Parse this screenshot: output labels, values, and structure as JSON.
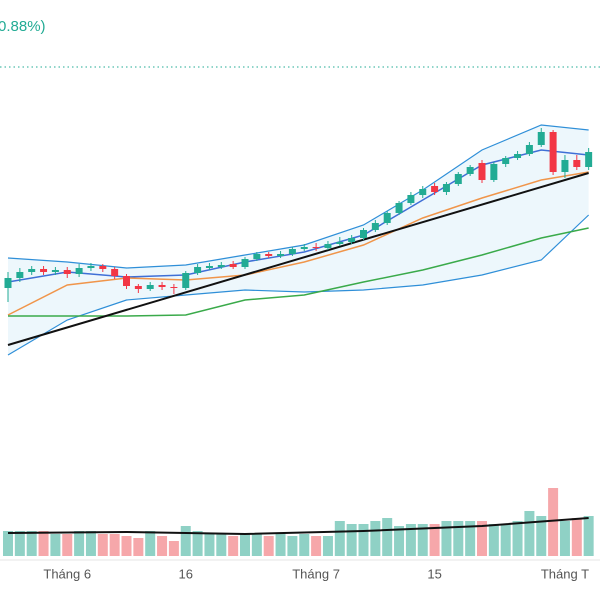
{
  "chart_data": {
    "type": "candlestick",
    "title": "0.88%)",
    "categories": [
      null,
      null,
      null,
      null,
      null,
      "Tháng 6",
      null,
      null,
      null,
      null,
      null,
      null,
      null,
      null,
      null,
      "16",
      null,
      null,
      null,
      null,
      null,
      null,
      null,
      null,
      null,
      null,
      "Tháng 7",
      null,
      null,
      null,
      null,
      null,
      null,
      null,
      null,
      null,
      "15",
      null,
      null,
      null,
      null,
      null,
      null,
      null,
      null,
      null,
      null,
      "Tháng T",
      null,
      null
    ],
    "open": [
      312,
      322,
      328,
      331,
      328,
      330,
      326,
      332,
      334,
      331,
      324,
      314,
      311,
      315,
      313,
      312,
      327,
      332,
      333,
      336,
      333,
      341,
      346,
      344,
      346,
      351,
      353,
      352,
      356,
      358,
      362,
      370,
      377,
      387,
      397,
      405,
      414,
      408,
      416,
      426,
      437,
      420,
      436,
      442,
      446,
      455,
      468,
      428,
      440,
      433
    ],
    "high": [
      328,
      332,
      334,
      334,
      333,
      333,
      336,
      337,
      336,
      333,
      326,
      316,
      318,
      318,
      316,
      329,
      336,
      337,
      338,
      339,
      343,
      348,
      348,
      349,
      353,
      356,
      357,
      359,
      363,
      365,
      372,
      380,
      389,
      399,
      408,
      414,
      417,
      418,
      428,
      435,
      440,
      438,
      444,
      449,
      458,
      472,
      470,
      445,
      445,
      452
    ],
    "low": [
      298,
      318,
      325,
      325,
      325,
      322,
      323,
      329,
      328,
      321,
      311,
      307,
      309,
      310,
      306,
      310,
      325,
      330,
      331,
      331,
      331,
      339,
      342,
      342,
      344,
      349,
      349,
      350,
      354,
      356,
      360,
      368,
      375,
      385,
      395,
      402,
      405,
      405,
      414,
      424,
      417,
      418,
      433,
      440,
      444,
      453,
      425,
      422,
      430,
      430
    ],
    "close": [
      322,
      328,
      331,
      328,
      330,
      326,
      332,
      334,
      331,
      324,
      314,
      311,
      315,
      313,
      312,
      327,
      333,
      334,
      335,
      333,
      341,
      346,
      344,
      346,
      351,
      353,
      352,
      356,
      358,
      362,
      370,
      377,
      387,
      397,
      405,
      411,
      408,
      416,
      426,
      433,
      420,
      436,
      442,
      446,
      455,
      468,
      428,
      440,
      433,
      448
    ],
    "ylim": [
      0,
      600
    ],
    "up_color": "#22ab94",
    "down_color": "#f23645",
    "bands": {
      "color": "#2f8fd8",
      "fill": "#e6f3fb",
      "x": [
        0,
        5,
        10,
        15,
        20,
        25,
        30,
        35,
        40,
        45,
        49
      ],
      "upper": [
        342,
        338,
        332,
        335,
        345,
        355,
        375,
        410,
        450,
        475,
        470
      ],
      "lower": [
        245,
        280,
        300,
        305,
        310,
        308,
        310,
        315,
        325,
        340,
        385
      ]
    },
    "lines": [
      {
        "color": "#3f6fd6",
        "x": [
          0,
          5,
          10,
          15,
          20,
          25,
          30,
          35,
          40,
          45,
          49
        ],
        "values": [
          318,
          328,
          323,
          325,
          338,
          348,
          365,
          400,
          435,
          450,
          445
        ]
      },
      {
        "color": "#f0954a",
        "x": [
          0,
          5,
          10,
          15,
          20,
          25,
          30,
          35,
          40,
          45,
          49
        ],
        "values": [
          285,
          315,
          322,
          320,
          325,
          338,
          355,
          382,
          402,
          420,
          428
        ]
      },
      {
        "color": "#3aaa4a",
        "x": [
          0,
          5,
          10,
          15,
          20,
          25,
          30,
          35,
          40,
          45,
          49
        ],
        "values": [
          284,
          284,
          284,
          285,
          300,
          305,
          318,
          330,
          345,
          362,
          372
        ]
      },
      {
        "color": "#111111",
        "x": [
          0,
          49
        ],
        "values": [
          255,
          427
        ]
      }
    ],
    "volume": {
      "values": [
        25,
        25,
        25,
        25,
        22,
        22,
        25,
        25,
        22,
        22,
        20,
        18,
        25,
        20,
        15,
        30,
        25,
        22,
        22,
        20,
        22,
        22,
        20,
        22,
        20,
        22,
        20,
        20,
        35,
        32,
        32,
        35,
        38,
        30,
        32,
        32,
        32,
        35,
        35,
        35,
        35,
        32,
        32,
        35,
        45,
        40,
        68,
        35,
        38,
        40
      ],
      "ylim": [
        0,
        100
      ],
      "up_color": "#8fd1c5",
      "down_color": "#f6a7aa",
      "ma": {
        "color": "#111111",
        "x": [
          0,
          10,
          20,
          30,
          40,
          49
        ],
        "values": [
          23,
          24,
          22,
          25,
          30,
          38
        ]
      }
    }
  }
}
